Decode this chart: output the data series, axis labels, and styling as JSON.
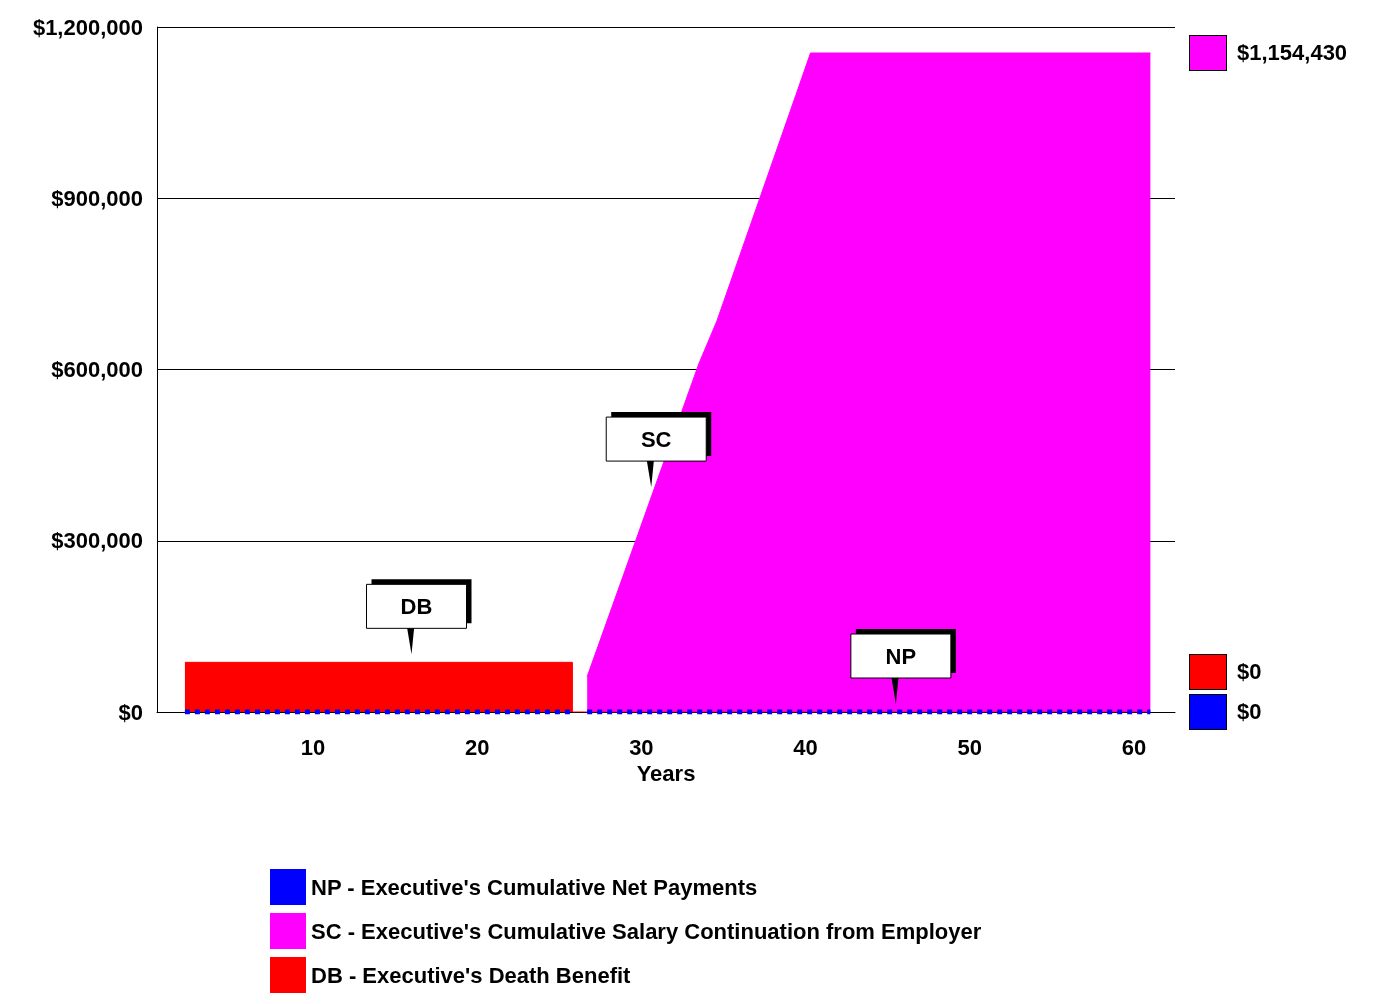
{
  "chart_data": {
    "type": "area",
    "xlabel": "Years",
    "xlim": [
      0.5,
      62.5
    ],
    "xticks": [
      10,
      20,
      30,
      40,
      50,
      60
    ],
    "ylim": [
      0,
      1200000
    ],
    "yticks": [
      {
        "value": 0,
        "label": "$0"
      },
      {
        "value": 300000,
        "label": "$300,000"
      },
      {
        "value": 600000,
        "label": "$600,000"
      },
      {
        "value": 900000,
        "label": "$900,000"
      },
      {
        "value": 1200000,
        "label": "$1,200,000"
      }
    ],
    "grid": "y",
    "legend": "bottom",
    "marker": "none",
    "series": [
      {
        "name": "NP - Executive's Cumulative Net Payments",
        "type": "line",
        "line_style": "dotted",
        "color": "#0000ff",
        "x": [
          2.2,
          25.8,
          26.2,
          26.7,
          61
        ],
        "values": [
          0,
          0,
          null,
          0,
          0
        ]
      },
      {
        "name": "SC - Executive's Cumulative Salary Continuation from Employer",
        "color": "#ff00ff",
        "x": [
          26.7,
          33.5,
          34.6,
          39.4,
          40.3,
          61
        ],
        "values": [
          62000,
          610000,
          685000,
          1080000,
          1154430,
          1154430
        ]
      },
      {
        "name": "DB - Executive's Death Benefit",
        "color": "#ff0000",
        "x": [
          2.2,
          25.8,
          25.8,
          61
        ],
        "values": [
          87000,
          87000,
          0,
          0
        ]
      }
    ],
    "annotations": [
      "$0",
      "$1,154,430",
      "$0",
      {
        "text": "DB",
        "x": 16,
        "y": 87000
      },
      {
        "text": "SC",
        "x": 30.6,
        "y": 380000
      },
      {
        "text": "NP",
        "x": 45.5,
        "y": 0
      }
    ]
  }
}
